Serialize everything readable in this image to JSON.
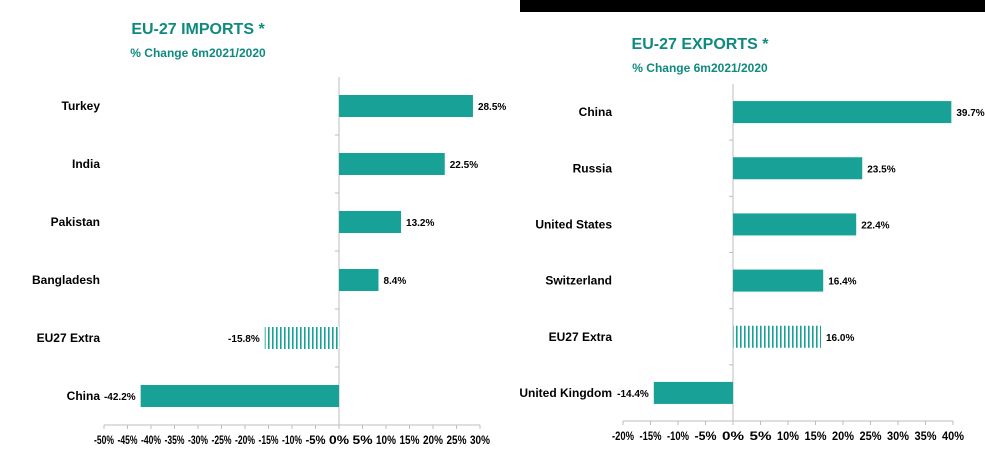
{
  "chart_data": [
    {
      "type": "bar",
      "orientation": "horizontal",
      "title": "EU-27  IMPORTS *",
      "subtitle": "% Change 6m2021/2020",
      "categories": [
        "Turkey",
        "India",
        "Pakistan",
        "Bangladesh",
        "EU27 Extra",
        "China"
      ],
      "values": [
        28.5,
        22.5,
        13.2,
        8.4,
        -15.8,
        -42.2
      ],
      "value_labels": [
        "28.5%",
        "22.5%",
        "13.2%",
        "8.4%",
        "-15.8%",
        "-42.2%"
      ],
      "highlight_category": "EU27 Extra",
      "xlim": [
        -50,
        30
      ],
      "xticks": [
        -50,
        -45,
        -40,
        -35,
        -30,
        -25,
        -20,
        -15,
        -10,
        -5,
        0,
        5,
        10,
        15,
        20,
        25,
        30
      ],
      "xtick_labels": [
        "-50%",
        "-45%",
        "-40%",
        "-35%",
        "-30%",
        "-25%",
        "-20%",
        "-15%",
        "-10%",
        "-5%",
        "0%",
        "5%",
        "10%",
        "15%",
        "20%",
        "25%",
        "30%"
      ],
      "grid": false,
      "color": "#17a197"
    },
    {
      "type": "bar",
      "orientation": "horizontal",
      "title": "EU-27  EXPORTS *",
      "subtitle": "% Change 6m2021/2020",
      "categories": [
        "China",
        "Russia",
        "United States",
        "Switzerland",
        "EU27 Extra",
        "United Kingdom"
      ],
      "values": [
        39.7,
        23.5,
        22.4,
        16.4,
        16.0,
        -14.4
      ],
      "value_labels": [
        "39.7%",
        "23.5%",
        "22.4%",
        "16.4%",
        "16.0%",
        "-14.4%"
      ],
      "highlight_category": "EU27 Extra",
      "xlim": [
        -20,
        40
      ],
      "xticks": [
        -20,
        -15,
        -10,
        -5,
        0,
        5,
        10,
        15,
        20,
        25,
        30,
        35,
        40
      ],
      "xtick_labels": [
        "-20%",
        "-15%",
        "-10%",
        "-5%",
        "0%",
        "5%",
        "10%",
        "15%",
        "20%",
        "25%",
        "30%",
        "35%",
        "40%"
      ],
      "grid": false,
      "color": "#17a197"
    }
  ]
}
